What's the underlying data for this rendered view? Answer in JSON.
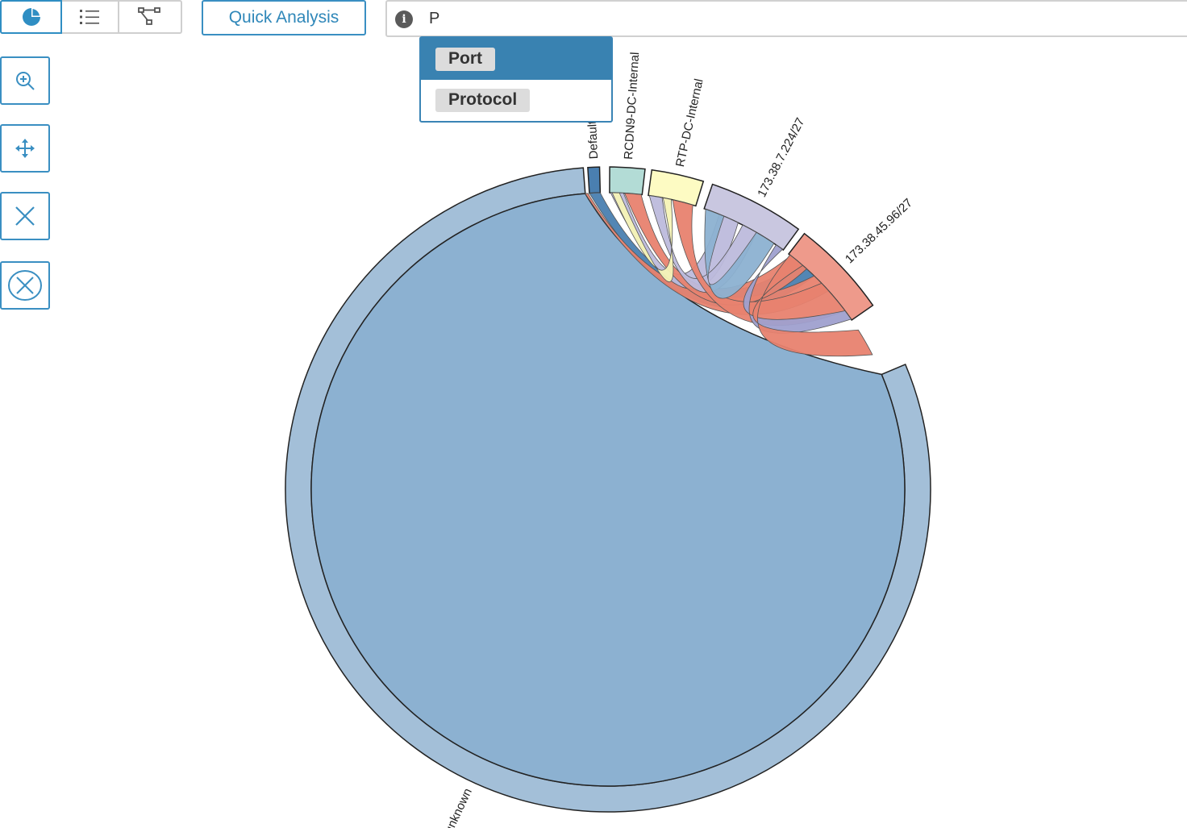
{
  "toolbar": {
    "view_buttons": [
      {
        "icon": "pie-chart-icon",
        "active": true
      },
      {
        "icon": "list-icon",
        "active": false
      },
      {
        "icon": "topology-icon",
        "active": false
      }
    ],
    "quick_analysis_label": "Quick Analysis"
  },
  "search": {
    "info_icon": "i",
    "query": "P"
  },
  "autocomplete": {
    "options": [
      "Port",
      "Protocol"
    ],
    "highlighted": "Port"
  },
  "side_tools": [
    {
      "icon": "zoom-in-icon"
    },
    {
      "icon": "move-icon"
    },
    {
      "icon": "close-icon"
    },
    {
      "icon": "clear-circle-icon"
    }
  ],
  "colors": {
    "accent": "#3a8fc2",
    "unknown": "#a3bfd8",
    "default": "#4a7fb0",
    "rcdn9": "#b3dcd6",
    "rtp": "#fdfbc3",
    "net224": "#c9c7e0",
    "net96": "#ee9a8b"
  },
  "chart_data": {
    "type": "chord",
    "title": "",
    "groups": [
      {
        "name": "unknown",
        "color": "#a3bfd8"
      },
      {
        "name": "Default",
        "color": "#4a7fb0"
      },
      {
        "name": "RCDN9-DC-Internal",
        "color": "#b3dcd6"
      },
      {
        "name": "RTP-DC-Internal",
        "color": "#fdfbc3"
      },
      {
        "name": "173.38.7.224/27",
        "color": "#c9c7e0"
      },
      {
        "name": "173.38.45.96/27",
        "color": "#ee9a8b"
      }
    ],
    "group_labels_shown": [
      "unknown",
      "Default",
      "RCDN9-DC-Internal",
      "RTP-DC-Internal",
      "173.38.7.224/27",
      "173.38.45.96/27"
    ]
  }
}
